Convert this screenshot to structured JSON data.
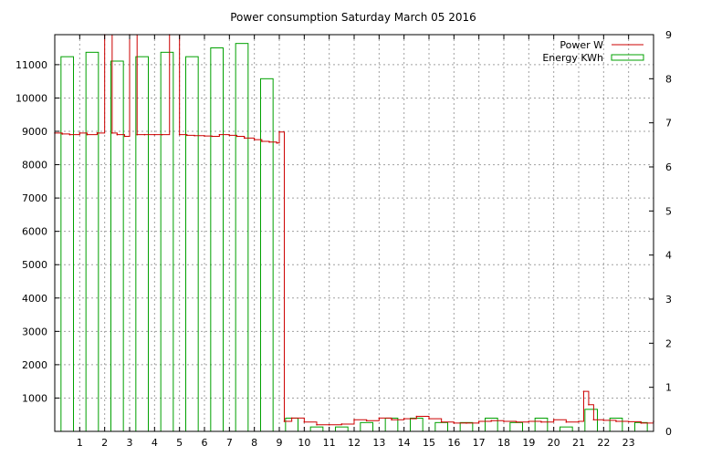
{
  "chart_data": {
    "type": "bar",
    "title": "Power consumption Saturday March 05 2016",
    "xlabel": "",
    "ylabel": "",
    "y2label": "",
    "xlim": [
      0,
      24
    ],
    "ylim": [
      0,
      11900
    ],
    "y2lim": [
      0,
      9
    ],
    "x_ticks": [
      "1",
      "2",
      "3",
      "4",
      "5",
      "6",
      "7",
      "8",
      "9",
      "10",
      "11",
      "12",
      "13",
      "14",
      "15",
      "16",
      "17",
      "18",
      "19",
      "20",
      "21",
      "22",
      "23"
    ],
    "y_ticks": [
      "1000",
      "2000",
      "3000",
      "4000",
      "5000",
      "6000",
      "7000",
      "8000",
      "9000",
      "10000",
      "11000"
    ],
    "y2_ticks": [
      "0",
      "1",
      "2",
      "3",
      "4",
      "5",
      "6",
      "7",
      "8",
      "9"
    ],
    "grid": true,
    "legend_position": "top-right",
    "colors": {
      "power": "#cc0000",
      "energy": "#00a000",
      "grid": "#a0a0a0"
    },
    "series": [
      {
        "name": "Energy KWh",
        "type": "bar",
        "axis": "right",
        "x": [
          0.5,
          1.5,
          2.5,
          3.5,
          4.5,
          5.5,
          6.5,
          7.5,
          8.5,
          9.5,
          10.5,
          11.5,
          12.5,
          13.5,
          14.5,
          15.5,
          16.5,
          17.5,
          18.5,
          19.5,
          20.5,
          21.5,
          22.5,
          23.5
        ],
        "values": [
          8.5,
          8.6,
          8.4,
          8.5,
          8.6,
          8.5,
          8.7,
          8.8,
          8.0,
          0.3,
          0.1,
          0.1,
          0.2,
          0.3,
          0.3,
          0.2,
          0.2,
          0.3,
          0.2,
          0.3,
          0.1,
          0.5,
          0.3,
          0.2
        ]
      },
      {
        "name": "Power W",
        "type": "line",
        "axis": "left",
        "x": [
          0,
          0.3,
          0.6,
          1.0,
          1.3,
          1.7,
          2.0,
          2.3,
          2.5,
          2.8,
          3.0,
          3.3,
          3.6,
          4.0,
          4.3,
          4.6,
          5.0,
          5.3,
          5.6,
          6.0,
          6.3,
          6.6,
          7.0,
          7.3,
          7.6,
          8.0,
          8.3,
          8.6,
          8.9,
          9.0,
          9.2,
          9.5,
          10.0,
          10.5,
          11.0,
          11.5,
          12.0,
          12.5,
          13.0,
          13.5,
          14.0,
          14.5,
          15.0,
          15.5,
          16.0,
          16.5,
          17.0,
          17.5,
          18.0,
          18.5,
          19.0,
          19.5,
          20.0,
          20.5,
          21.0,
          21.2,
          21.4,
          21.6,
          22.0,
          22.5,
          23.0,
          23.5,
          24.0
        ],
        "values": [
          8950,
          8920,
          8900,
          8950,
          8900,
          8950,
          11900,
          8950,
          8900,
          8850,
          11900,
          8900,
          8900,
          8900,
          8900,
          11900,
          8900,
          8880,
          8870,
          8860,
          8850,
          8900,
          8880,
          8850,
          8800,
          8750,
          8700,
          8680,
          8650,
          8980,
          300,
          400,
          280,
          200,
          200,
          220,
          350,
          320,
          400,
          350,
          380,
          450,
          380,
          280,
          250,
          250,
          300,
          320,
          300,
          280,
          300,
          280,
          350,
          280,
          300,
          1200,
          800,
          350,
          330,
          300,
          290,
          250,
          300
        ]
      }
    ]
  },
  "legend": [
    {
      "label": "Power W",
      "swatch": "line"
    },
    {
      "label": "Energy KWh",
      "swatch": "box"
    }
  ]
}
